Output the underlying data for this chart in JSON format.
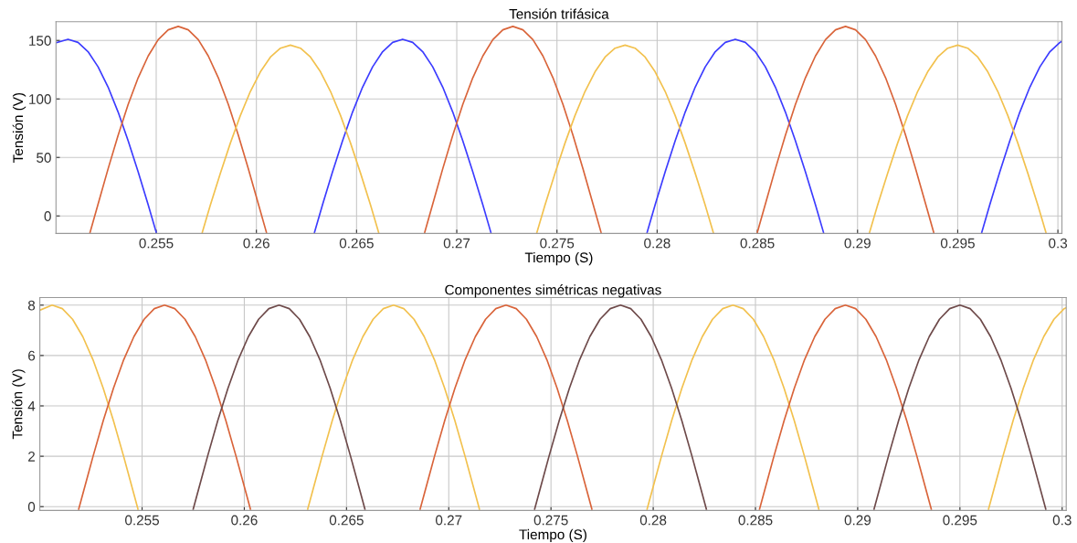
{
  "chart_data": [
    {
      "type": "line",
      "title": "Tensión trifásica",
      "xlabel": "Tiempo (S)",
      "ylabel": "Tensión (V)",
      "xlim": [
        0.25,
        0.3002
      ],
      "ylim": [
        -15,
        166
      ],
      "xticks": [
        0.255,
        0.26,
        0.265,
        0.27,
        0.275,
        0.28,
        0.285,
        0.29,
        0.295,
        0.3
      ],
      "yticks": [
        0,
        50,
        100,
        150
      ],
      "grid": true,
      "series": [
        {
          "color": "#3c3cff",
          "x": [
            0.25,
            0.2506,
            0.2511,
            0.2516,
            0.2521,
            0.2526,
            0.2531,
            0.2536,
            0.2541,
            0.2546,
            0.255,
            0.259,
            0.2629,
            0.2633,
            0.2638,
            0.2643,
            0.2648,
            0.2653,
            0.2658,
            0.2663,
            0.2668,
            0.2673,
            0.2678,
            0.2683,
            0.2688,
            0.2693,
            0.2698,
            0.2703,
            0.2708,
            0.2713,
            0.2717,
            0.275,
            0.2795,
            0.2799,
            0.2804,
            0.2809,
            0.2814,
            0.2819,
            0.2824,
            0.2829,
            0.2834,
            0.2839,
            0.2844,
            0.2849,
            0.2854,
            0.2859,
            0.2864,
            0.2869,
            0.2874,
            0.2879,
            0.2883,
            0.292,
            0.2962,
            0.2966,
            0.2971,
            0.2976,
            0.2981,
            0.2986,
            0.2991,
            0.2996,
            0.3001,
            0.3002
          ],
          "values": [
            148,
            151,
            148.3,
            140.4,
            127.4,
            110.1,
            88.8,
            64.3,
            37.6,
            9.5,
            -14,
            null,
            -14,
            9.5,
            37.6,
            64.3,
            88.8,
            110.1,
            127.4,
            140.4,
            148.3,
            151,
            148.3,
            140.4,
            127.4,
            110.1,
            88.8,
            64.3,
            37.6,
            9.5,
            -14,
            null,
            -14,
            9.5,
            37.6,
            64.3,
            88.8,
            110.1,
            127.4,
            140.4,
            148.3,
            151,
            148.3,
            140.4,
            127.4,
            110.1,
            88.8,
            64.3,
            37.6,
            9.5,
            -14,
            null,
            -14,
            9.5,
            37.6,
            64.3,
            88.8,
            110.1,
            127.4,
            140.4,
            148.3,
            149.3
          ]
        },
        {
          "color": "#d9643a",
          "x": [
            0.2517,
            0.2521,
            0.2526,
            0.2531,
            0.2536,
            0.2541,
            0.2546,
            0.2551,
            0.2556,
            0.2561,
            0.2566,
            0.2571,
            0.2576,
            0.2581,
            0.2586,
            0.2591,
            0.2596,
            0.2601,
            0.2605,
            0.262,
            0.2684,
            0.2688,
            0.2693,
            0.2698,
            0.2703,
            0.2708,
            0.2713,
            0.2718,
            0.2723,
            0.2728,
            0.2733,
            0.2738,
            0.2743,
            0.2748,
            0.2753,
            0.2758,
            0.2763,
            0.2768,
            0.2772,
            0.279,
            0.285,
            0.2854,
            0.2859,
            0.2864,
            0.2869,
            0.2874,
            0.2879,
            0.2884,
            0.2889,
            0.2894,
            0.2899,
            0.2904,
            0.2909,
            0.2914,
            0.2919,
            0.2924,
            0.2929,
            0.2934,
            0.2938
          ],
          "values": [
            -14,
            10.2,
            40.3,
            69,
            95.3,
            118.1,
            136.7,
            150.7,
            159.1,
            162,
            159.1,
            150.7,
            136.7,
            118.1,
            95.3,
            69,
            40.3,
            10.2,
            -14,
            null,
            -14,
            10.2,
            40.3,
            69,
            95.3,
            118.1,
            136.7,
            150.7,
            159.1,
            162,
            159.1,
            150.7,
            136.7,
            118.1,
            95.3,
            69,
            40.3,
            10.2,
            -14,
            null,
            -14,
            10.2,
            40.3,
            69,
            95.3,
            118.1,
            136.7,
            150.7,
            159.1,
            162,
            159.1,
            150.7,
            136.7,
            118.1,
            95.3,
            69,
            40.3,
            10.2,
            -14
          ]
        },
        {
          "color": "#f2c14e",
          "x": [
            0.2573,
            0.2577,
            0.2582,
            0.2587,
            0.2592,
            0.2597,
            0.2602,
            0.2607,
            0.2612,
            0.2617,
            0.2622,
            0.2627,
            0.2632,
            0.2637,
            0.2642,
            0.2647,
            0.2652,
            0.2657,
            0.2661,
            0.27,
            0.274,
            0.2744,
            0.2749,
            0.2754,
            0.2759,
            0.2764,
            0.2769,
            0.2774,
            0.2779,
            0.2784,
            0.2789,
            0.2794,
            0.2799,
            0.2804,
            0.2809,
            0.2814,
            0.2819,
            0.2824,
            0.2828,
            0.285,
            0.2906,
            0.291,
            0.2915,
            0.292,
            0.2925,
            0.293,
            0.2935,
            0.294,
            0.2945,
            0.295,
            0.2955,
            0.296,
            0.2965,
            0.297,
            0.2975,
            0.298,
            0.2985,
            0.299,
            0.2994
          ],
          "values": [
            -14,
            9.2,
            36.4,
            62.2,
            85.8,
            106.4,
            123.2,
            135.8,
            143.4,
            146,
            143.4,
            135.8,
            123.2,
            106.4,
            85.8,
            62.2,
            36.4,
            9.2,
            -14,
            null,
            -14,
            9.2,
            36.4,
            62.2,
            85.8,
            106.4,
            123.2,
            135.8,
            143.4,
            146,
            143.4,
            135.8,
            123.2,
            106.4,
            85.8,
            62.2,
            36.4,
            9.2,
            -14,
            null,
            -14,
            9.2,
            36.4,
            62.2,
            85.8,
            106.4,
            123.2,
            135.8,
            143.4,
            146,
            143.4,
            135.8,
            123.2,
            106.4,
            85.8,
            62.2,
            36.4,
            9.2,
            -14
          ]
        }
      ]
    },
    {
      "type": "line",
      "title": "Componentes simétricas negativas",
      "xlabel": "Tiempo (S)",
      "ylabel": "Tensión (V)",
      "xlim": [
        0.25,
        0.3002
      ],
      "ylim": [
        -0.15,
        8.3
      ],
      "xticks": [
        0.255,
        0.26,
        0.265,
        0.27,
        0.275,
        0.28,
        0.285,
        0.29,
        0.295,
        0.3
      ],
      "yticks": [
        0,
        2,
        4,
        6,
        8
      ],
      "grid": true,
      "series": [
        {
          "color": "#f2c14e",
          "x": [
            0.25,
            0.2506,
            0.2511,
            0.2516,
            0.2521,
            0.2526,
            0.2531,
            0.2536,
            0.2541,
            0.2546,
            0.2548,
            0.259,
            0.2631,
            0.2633,
            0.2638,
            0.2643,
            0.2648,
            0.2653,
            0.2658,
            0.2663,
            0.2668,
            0.2673,
            0.2678,
            0.2683,
            0.2688,
            0.2693,
            0.2698,
            0.2703,
            0.2708,
            0.2713,
            0.2715,
            0.275,
            0.2797,
            0.2799,
            0.2804,
            0.2809,
            0.2814,
            0.2819,
            0.2824,
            0.2829,
            0.2834,
            0.2839,
            0.2844,
            0.2849,
            0.2854,
            0.2859,
            0.2864,
            0.2869,
            0.2874,
            0.2879,
            0.2881,
            0.292,
            0.2964,
            0.2966,
            0.2971,
            0.2976,
            0.2981,
            0.2986,
            0.2991,
            0.2996,
            0.3001,
            0.3002
          ],
          "values": [
            7.8,
            8,
            7.86,
            7.44,
            6.75,
            5.83,
            4.7,
            3.41,
            1.99,
            0.5,
            -0.1,
            null,
            -0.1,
            0.5,
            1.99,
            3.41,
            4.7,
            5.83,
            6.75,
            7.44,
            7.86,
            8,
            7.86,
            7.44,
            6.75,
            5.83,
            4.7,
            3.41,
            1.99,
            0.5,
            -0.1,
            null,
            -0.1,
            0.5,
            1.99,
            3.41,
            4.7,
            5.83,
            6.75,
            7.44,
            7.86,
            8,
            7.86,
            7.44,
            6.75,
            5.83,
            4.7,
            3.41,
            1.99,
            0.5,
            -0.1,
            null,
            -0.1,
            0.5,
            1.99,
            3.41,
            4.7,
            5.83,
            6.75,
            7.44,
            7.86,
            7.9
          ]
        },
        {
          "color": "#d9643a",
          "x": [
            0.2519,
            0.2521,
            0.2526,
            0.2531,
            0.2536,
            0.2541,
            0.2546,
            0.2551,
            0.2556,
            0.2561,
            0.2566,
            0.2571,
            0.2576,
            0.2581,
            0.2586,
            0.2591,
            0.2596,
            0.2601,
            0.2603,
            0.262,
            0.2686,
            0.2688,
            0.2693,
            0.2698,
            0.2703,
            0.2708,
            0.2713,
            0.2718,
            0.2723,
            0.2728,
            0.2733,
            0.2738,
            0.2743,
            0.2748,
            0.2753,
            0.2758,
            0.2763,
            0.2768,
            0.277,
            0.279,
            0.2852,
            0.2854,
            0.2859,
            0.2864,
            0.2869,
            0.2874,
            0.2879,
            0.2884,
            0.2889,
            0.2894,
            0.2899,
            0.2904,
            0.2909,
            0.2914,
            0.2919,
            0.2924,
            0.2929,
            0.2934,
            0.2936
          ],
          "values": [
            -0.1,
            0.5,
            1.99,
            3.41,
            4.7,
            5.83,
            6.75,
            7.44,
            7.86,
            8,
            7.86,
            7.44,
            6.75,
            5.83,
            4.7,
            3.41,
            1.99,
            0.5,
            -0.1,
            null,
            -0.1,
            0.5,
            1.99,
            3.41,
            4.7,
            5.83,
            6.75,
            7.44,
            7.86,
            8,
            7.86,
            7.44,
            6.75,
            5.83,
            4.7,
            3.41,
            1.99,
            0.5,
            -0.1,
            null,
            -0.1,
            0.5,
            1.99,
            3.41,
            4.7,
            5.83,
            6.75,
            7.44,
            7.86,
            8,
            7.86,
            7.44,
            6.75,
            5.83,
            4.7,
            3.41,
            1.99,
            0.5,
            -0.1
          ]
        },
        {
          "color": "#6e4a4a",
          "x": [
            0.2575,
            0.2577,
            0.2582,
            0.2587,
            0.2592,
            0.2597,
            0.2602,
            0.2607,
            0.2612,
            0.2617,
            0.2622,
            0.2627,
            0.2632,
            0.2637,
            0.2642,
            0.2647,
            0.2652,
            0.2657,
            0.2659,
            0.27,
            0.2742,
            0.2744,
            0.2749,
            0.2754,
            0.2759,
            0.2764,
            0.2769,
            0.2774,
            0.2779,
            0.2784,
            0.2789,
            0.2794,
            0.2799,
            0.2804,
            0.2809,
            0.2814,
            0.2819,
            0.2824,
            0.2826,
            0.285,
            0.2908,
            0.291,
            0.2915,
            0.292,
            0.2925,
            0.293,
            0.2935,
            0.294,
            0.2945,
            0.295,
            0.2955,
            0.296,
            0.2965,
            0.297,
            0.2975,
            0.298,
            0.2985,
            0.299,
            0.2992
          ],
          "values": [
            -0.1,
            0.5,
            1.99,
            3.41,
            4.7,
            5.83,
            6.75,
            7.44,
            7.86,
            8,
            7.86,
            7.44,
            6.75,
            5.83,
            4.7,
            3.41,
            1.99,
            0.5,
            -0.1,
            null,
            -0.1,
            0.5,
            1.99,
            3.41,
            4.7,
            5.83,
            6.75,
            7.44,
            7.86,
            8,
            7.86,
            7.44,
            6.75,
            5.83,
            4.7,
            3.41,
            1.99,
            0.5,
            -0.1,
            null,
            -0.1,
            0.5,
            1.99,
            3.41,
            4.7,
            5.83,
            6.75,
            7.44,
            7.86,
            8,
            7.86,
            7.44,
            6.75,
            5.83,
            4.7,
            3.41,
            1.99,
            0.5,
            -0.1
          ]
        }
      ]
    }
  ]
}
